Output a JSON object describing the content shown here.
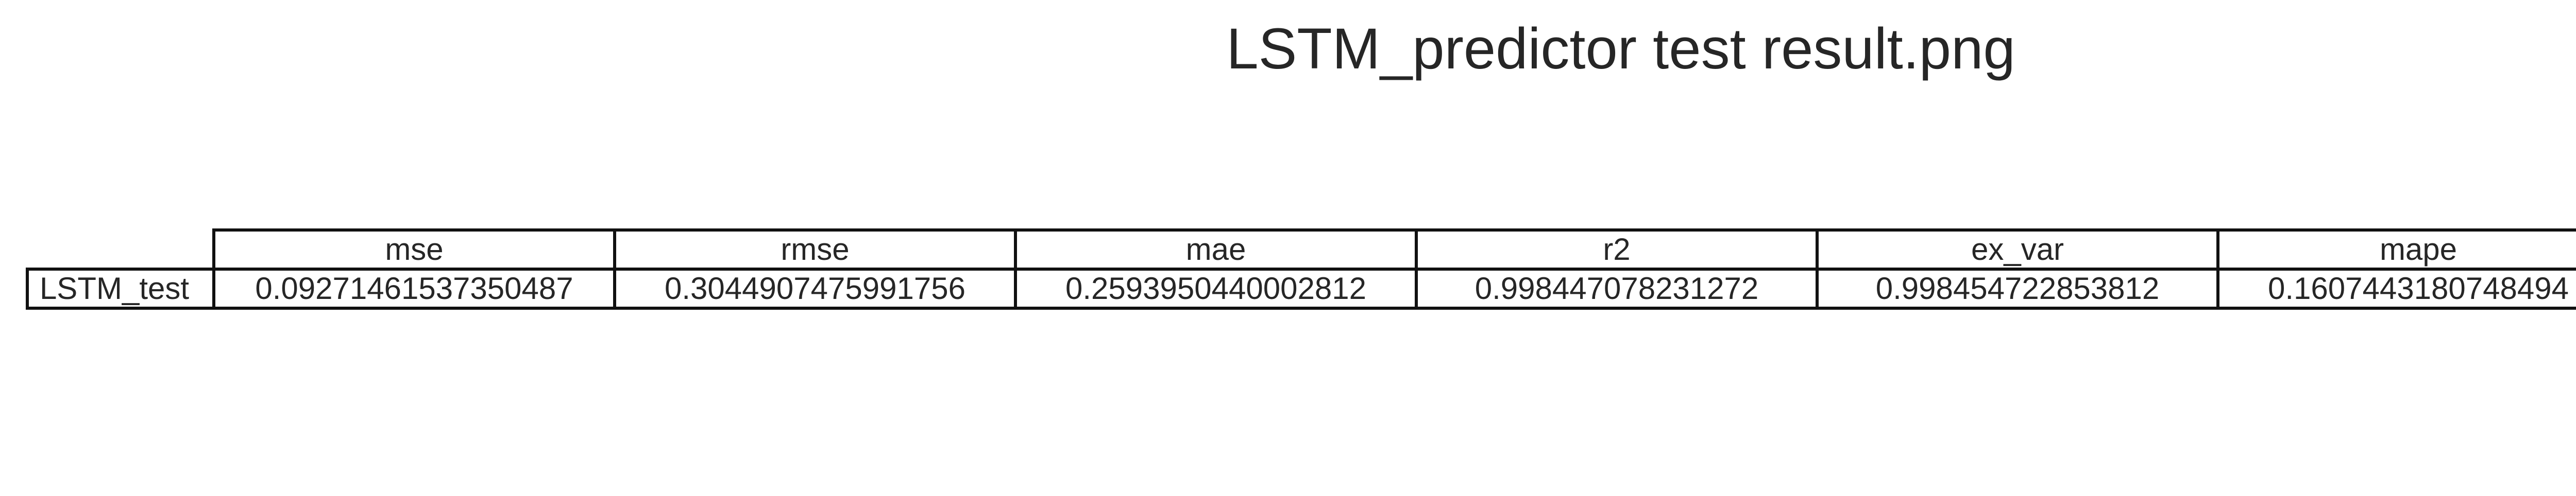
{
  "title": "LSTM_predictor test result.png",
  "chart_data": {
    "type": "table",
    "title": "LSTM_predictor test result.png",
    "columns": [
      "mse",
      "rmse",
      "mae",
      "r2",
      "ex_var",
      "mape"
    ],
    "rows": [
      {
        "label": "LSTM_test",
        "values": [
          "0.09271461537350487",
          "0.3044907475991756",
          "0.2593950440002812",
          "0.998447078231272",
          "0.998454722853812",
          "0.1607443180748494"
        ]
      }
    ]
  }
}
